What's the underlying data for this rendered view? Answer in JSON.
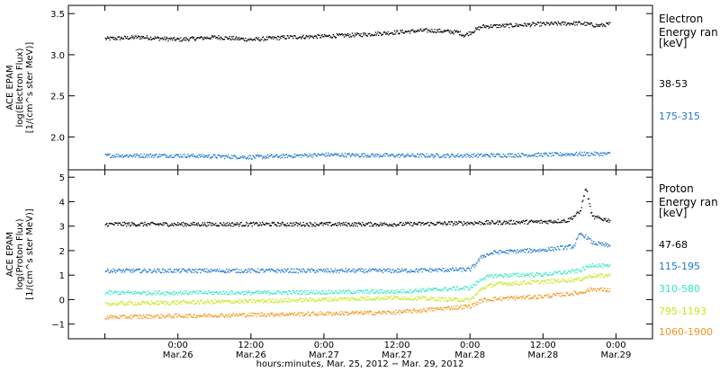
{
  "chart_data": [
    {
      "type": "scatter",
      "panel": "electron",
      "ylabel": [
        "ACE EPAM",
        "log(Electron Flux)",
        "[1/(cm^s ster MeV)]"
      ],
      "ylim": [
        1.6,
        3.6
      ],
      "yticks": [
        2.0,
        2.5,
        3.0,
        3.5
      ],
      "ytick_labels": [
        "2.0",
        "2.5",
        "3.0",
        "3.5"
      ],
      "legend_title": [
        "Electron",
        "Energy ran",
        "[keV]"
      ],
      "grid": false,
      "x_range_hours": [
        -18,
        78
      ],
      "series": [
        {
          "name": "38-53",
          "color": "#000000",
          "x_hours": [
            -12,
            -6,
            0,
            6,
            12,
            18,
            24,
            30,
            36,
            40,
            42,
            46,
            47,
            50,
            54,
            60,
            66,
            69,
            71
          ],
          "y": [
            3.2,
            3.22,
            3.19,
            3.22,
            3.19,
            3.22,
            3.23,
            3.25,
            3.28,
            3.3,
            3.3,
            3.28,
            3.24,
            3.35,
            3.36,
            3.38,
            3.39,
            3.36,
            3.38
          ]
        },
        {
          "name": "175-315",
          "color": "#1f77d0",
          "x_hours": [
            -12,
            0,
            12,
            24,
            36,
            48,
            60,
            66,
            71
          ],
          "y": [
            1.78,
            1.78,
            1.76,
            1.79,
            1.78,
            1.78,
            1.79,
            1.8,
            1.8
          ]
        }
      ]
    },
    {
      "type": "scatter",
      "panel": "proton",
      "ylabel": [
        "ACE EPAM",
        "log(Proton Flux)",
        "[1/(cm^s ster MeV)]"
      ],
      "ylim": [
        -1.6,
        5.3
      ],
      "yticks": [
        -1,
        0,
        1,
        2,
        3,
        4,
        5
      ],
      "ytick_labels": [
        "−1",
        "0",
        "1",
        "2",
        "3",
        "4",
        "5"
      ],
      "legend_title": [
        "Proton",
        "Energy ran",
        "[keV]"
      ],
      "grid": false,
      "x_range_hours": [
        -18,
        78
      ],
      "x_ticks": [
        {
          "hours": -12,
          "time": "",
          "date": ""
        },
        {
          "hours": 0,
          "time": "0:00",
          "date": "Mar.26"
        },
        {
          "hours": 12,
          "time": "12:00",
          "date": "Mar.26"
        },
        {
          "hours": 24,
          "time": "0:00",
          "date": "Mar.27"
        },
        {
          "hours": 36,
          "time": "12:00",
          "date": "Mar.27"
        },
        {
          "hours": 48,
          "time": "0:00",
          "date": "Mar.28"
        },
        {
          "hours": 60,
          "time": "12:00",
          "date": "Mar.28"
        },
        {
          "hours": 72,
          "time": "0:00",
          "date": "Mar.29"
        }
      ],
      "xlabel": "hours:minutes, Mar. 25, 2012 − Mar. 29, 2012",
      "series": [
        {
          "name": "47-68",
          "color": "#000000",
          "x_hours": [
            -12,
            12,
            36,
            48,
            60,
            64,
            66,
            67,
            68,
            71
          ],
          "y": [
            3.1,
            3.1,
            3.1,
            3.15,
            3.2,
            3.25,
            3.6,
            4.6,
            3.4,
            3.25
          ]
        },
        {
          "name": "115-195",
          "color": "#1f77d0",
          "x_hours": [
            -12,
            12,
            36,
            48,
            50,
            52,
            60,
            65,
            66,
            67,
            68,
            71
          ],
          "y": [
            1.2,
            1.2,
            1.2,
            1.25,
            1.8,
            1.95,
            2.05,
            2.2,
            2.7,
            2.6,
            2.35,
            2.2
          ]
        },
        {
          "name": "310-580",
          "color": "#33e6c8",
          "x_hours": [
            -12,
            12,
            36,
            48,
            50,
            52,
            60,
            66,
            68,
            71
          ],
          "y": [
            0.3,
            0.3,
            0.35,
            0.5,
            0.9,
            1.0,
            1.05,
            1.2,
            1.45,
            1.35
          ]
        },
        {
          "name": "795-1193",
          "color": "#c8e61e",
          "x_hours": [
            -12,
            12,
            36,
            48,
            50,
            52,
            60,
            66,
            68,
            71
          ],
          "y": [
            -0.15,
            -0.05,
            0.1,
            0.0,
            0.5,
            0.65,
            0.75,
            0.85,
            1.0,
            1.0
          ]
        },
        {
          "name": "1060-1900",
          "color": "#f0961e",
          "x_hours": [
            -12,
            12,
            36,
            48,
            50,
            52,
            60,
            66,
            68,
            71
          ],
          "y": [
            -0.7,
            -0.6,
            -0.5,
            -0.25,
            0.0,
            0.05,
            0.15,
            0.3,
            0.45,
            0.4
          ]
        }
      ]
    }
  ]
}
